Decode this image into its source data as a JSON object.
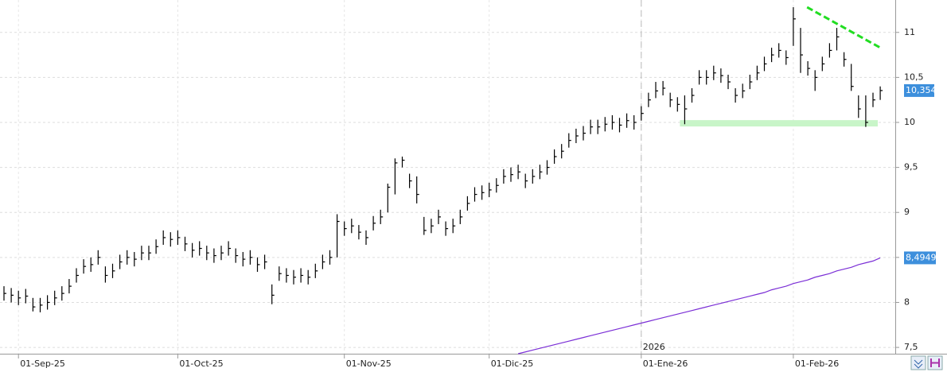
{
  "chart_data": {
    "type": "ohlc",
    "annotation": "2026",
    "categories": [
      null,
      null,
      "01-Sep-25",
      null,
      null,
      null,
      null,
      null,
      null,
      null,
      null,
      null,
      null,
      null,
      null,
      null,
      null,
      null,
      null,
      null,
      null,
      null,
      null,
      null,
      "01-Oct-25",
      null,
      null,
      null,
      null,
      null,
      null,
      null,
      null,
      null,
      null,
      null,
      null,
      null,
      null,
      null,
      null,
      null,
      null,
      null,
      null,
      null,
      null,
      "01-Nov-25",
      null,
      null,
      null,
      null,
      null,
      null,
      null,
      null,
      null,
      null,
      null,
      null,
      null,
      null,
      null,
      null,
      null,
      null,
      null,
      "01-Dic-25",
      null,
      null,
      null,
      null,
      null,
      null,
      null,
      null,
      null,
      null,
      null,
      null,
      null,
      null,
      null,
      null,
      null,
      null,
      null,
      null,
      "01-Ene-26",
      null,
      null,
      null,
      null,
      null,
      null,
      null,
      null,
      null,
      null,
      null,
      null,
      null,
      null,
      null,
      null,
      null,
      null,
      null,
      null,
      "01-Feb-26",
      null,
      null,
      null,
      null,
      null,
      null,
      null,
      null,
      null,
      null,
      null,
      null
    ],
    "high": [
      8.18,
      8.16,
      8.13,
      8.15,
      8.05,
      8.05,
      8.08,
      8.13,
      8.18,
      8.26,
      8.38,
      8.48,
      8.5,
      8.58,
      8.4,
      8.43,
      8.53,
      8.58,
      8.56,
      8.63,
      8.63,
      8.7,
      8.8,
      8.78,
      8.8,
      8.73,
      8.66,
      8.68,
      8.63,
      8.6,
      8.63,
      8.68,
      8.6,
      8.56,
      8.58,
      8.5,
      8.53,
      8.2,
      8.4,
      8.38,
      8.36,
      8.38,
      8.36,
      8.43,
      8.53,
      8.58,
      8.98,
      8.9,
      8.93,
      8.86,
      8.8,
      8.96,
      9.03,
      9.32,
      9.6,
      9.62,
      9.43,
      9.4,
      8.95,
      8.93,
      9.03,
      8.9,
      8.93,
      9.03,
      9.18,
      9.28,
      9.3,
      9.33,
      9.38,
      9.48,
      9.5,
      9.53,
      9.43,
      9.48,
      9.53,
      9.58,
      9.7,
      9.76,
      9.88,
      9.93,
      9.96,
      10.03,
      10.03,
      10.06,
      10.08,
      10.05,
      10.1,
      10.08,
      10.18,
      10.33,
      10.45,
      10.46,
      10.33,
      10.28,
      10.3,
      10.38,
      10.58,
      10.58,
      10.63,
      10.6,
      10.53,
      10.38,
      10.43,
      10.53,
      10.63,
      10.73,
      10.83,
      10.88,
      10.8,
      11.28,
      11.05,
      10.68,
      10.58,
      10.73,
      10.88,
      11.05,
      10.78,
      10.65,
      10.3,
      10.3,
      10.33,
      10.4
    ],
    "low": [
      8.02,
      8.0,
      7.97,
      7.99,
      7.9,
      7.89,
      7.92,
      7.97,
      8.02,
      8.1,
      8.22,
      8.32,
      8.34,
      8.42,
      8.22,
      8.27,
      8.37,
      8.42,
      8.4,
      8.47,
      8.47,
      8.54,
      8.64,
      8.62,
      8.64,
      8.57,
      8.5,
      8.52,
      8.47,
      8.44,
      8.47,
      8.52,
      8.44,
      8.4,
      8.42,
      8.34,
      8.37,
      7.98,
      8.24,
      8.22,
      8.2,
      8.22,
      8.2,
      8.27,
      8.37,
      8.42,
      8.5,
      8.74,
      8.77,
      8.7,
      8.64,
      8.8,
      8.87,
      9.0,
      9.2,
      9.5,
      9.27,
      9.1,
      8.75,
      8.77,
      8.87,
      8.74,
      8.77,
      8.87,
      9.02,
      9.12,
      9.14,
      9.17,
      9.22,
      9.32,
      9.34,
      9.37,
      9.27,
      9.32,
      9.37,
      9.42,
      9.54,
      9.6,
      9.72,
      9.77,
      9.8,
      9.87,
      9.87,
      9.9,
      9.92,
      9.89,
      9.94,
      9.92,
      10.02,
      10.17,
      10.27,
      10.3,
      10.17,
      10.12,
      9.98,
      10.22,
      10.42,
      10.42,
      10.47,
      10.44,
      10.37,
      10.22,
      10.27,
      10.37,
      10.47,
      10.57,
      10.67,
      10.72,
      10.64,
      10.85,
      10.55,
      10.52,
      10.35,
      10.57,
      10.72,
      10.8,
      10.62,
      10.35,
      10.05,
      9.95,
      10.17,
      10.25
    ],
    "close": [
      8.1,
      8.08,
      8.05,
      8.07,
      7.95,
      7.97,
      8.0,
      8.05,
      8.1,
      8.18,
      8.3,
      8.4,
      8.42,
      8.5,
      8.3,
      8.35,
      8.45,
      8.5,
      8.48,
      8.55,
      8.55,
      8.62,
      8.72,
      8.7,
      8.72,
      8.65,
      8.58,
      8.6,
      8.55,
      8.52,
      8.55,
      8.6,
      8.52,
      8.48,
      8.5,
      8.42,
      8.45,
      8.08,
      8.32,
      8.3,
      8.28,
      8.3,
      8.28,
      8.35,
      8.45,
      8.5,
      8.9,
      8.82,
      8.85,
      8.78,
      8.72,
      8.88,
      8.95,
      9.28,
      9.55,
      9.58,
      9.35,
      9.2,
      8.8,
      8.85,
      8.95,
      8.82,
      8.85,
      8.95,
      9.1,
      9.2,
      9.22,
      9.25,
      9.3,
      9.4,
      9.42,
      9.45,
      9.35,
      9.4,
      9.45,
      9.5,
      9.62,
      9.68,
      9.8,
      9.85,
      9.88,
      9.95,
      9.95,
      9.98,
      10.0,
      9.97,
      10.02,
      10.0,
      10.1,
      10.25,
      10.35,
      10.38,
      10.25,
      10.2,
      10.15,
      10.3,
      10.5,
      10.5,
      10.55,
      10.52,
      10.45,
      10.3,
      10.35,
      10.45,
      10.55,
      10.65,
      10.75,
      10.8,
      10.72,
      11.15,
      10.75,
      10.6,
      10.5,
      10.65,
      10.8,
      10.95,
      10.7,
      10.4,
      10.15,
      10.0,
      10.25,
      10.354
    ],
    "close_label": "10,354",
    "color": "#000000",
    "ma": {
      "color": "#7b2fd6",
      "label": "8,4949",
      "values": [
        null,
        null,
        null,
        null,
        null,
        null,
        null,
        null,
        null,
        null,
        null,
        null,
        null,
        null,
        null,
        null,
        null,
        null,
        null,
        null,
        null,
        null,
        null,
        null,
        null,
        null,
        null,
        null,
        null,
        null,
        null,
        null,
        null,
        null,
        null,
        null,
        null,
        null,
        null,
        null,
        null,
        null,
        null,
        null,
        null,
        null,
        null,
        null,
        null,
        null,
        null,
        null,
        null,
        null,
        null,
        null,
        null,
        null,
        null,
        null,
        null,
        null,
        null,
        null,
        null,
        null,
        null,
        null,
        null,
        null,
        null,
        7.43,
        7.45,
        7.47,
        7.49,
        7.51,
        7.53,
        7.55,
        7.57,
        7.59,
        7.61,
        7.63,
        7.65,
        7.67,
        7.69,
        7.71,
        7.73,
        7.75,
        7.77,
        7.79,
        7.81,
        7.83,
        7.85,
        7.87,
        7.89,
        7.91,
        7.93,
        7.95,
        7.97,
        7.99,
        8.01,
        8.03,
        8.05,
        8.07,
        8.09,
        8.11,
        8.14,
        8.16,
        8.18,
        8.21,
        8.23,
        8.25,
        8.28,
        8.3,
        8.32,
        8.35,
        8.37,
        8.39,
        8.42,
        8.44,
        8.46,
        8.4949
      ]
    },
    "support": {
      "value": 9.99,
      "color": "#c8f5c8"
    },
    "trendline": {
      "start": 11.28,
      "end": 10.83,
      "color": "#22dd22"
    },
    "ylim": [
      7.43,
      11.36
    ],
    "yticks": [
      {
        "value": 7.5,
        "label": "7,5"
      },
      8,
      {
        "value": 8.5,
        "label": "8,5"
      },
      9,
      {
        "value": 9.5,
        "label": "9,5"
      },
      10,
      {
        "value": 10.5,
        "label": "10,5"
      },
      11
    ],
    "grid": true
  }
}
